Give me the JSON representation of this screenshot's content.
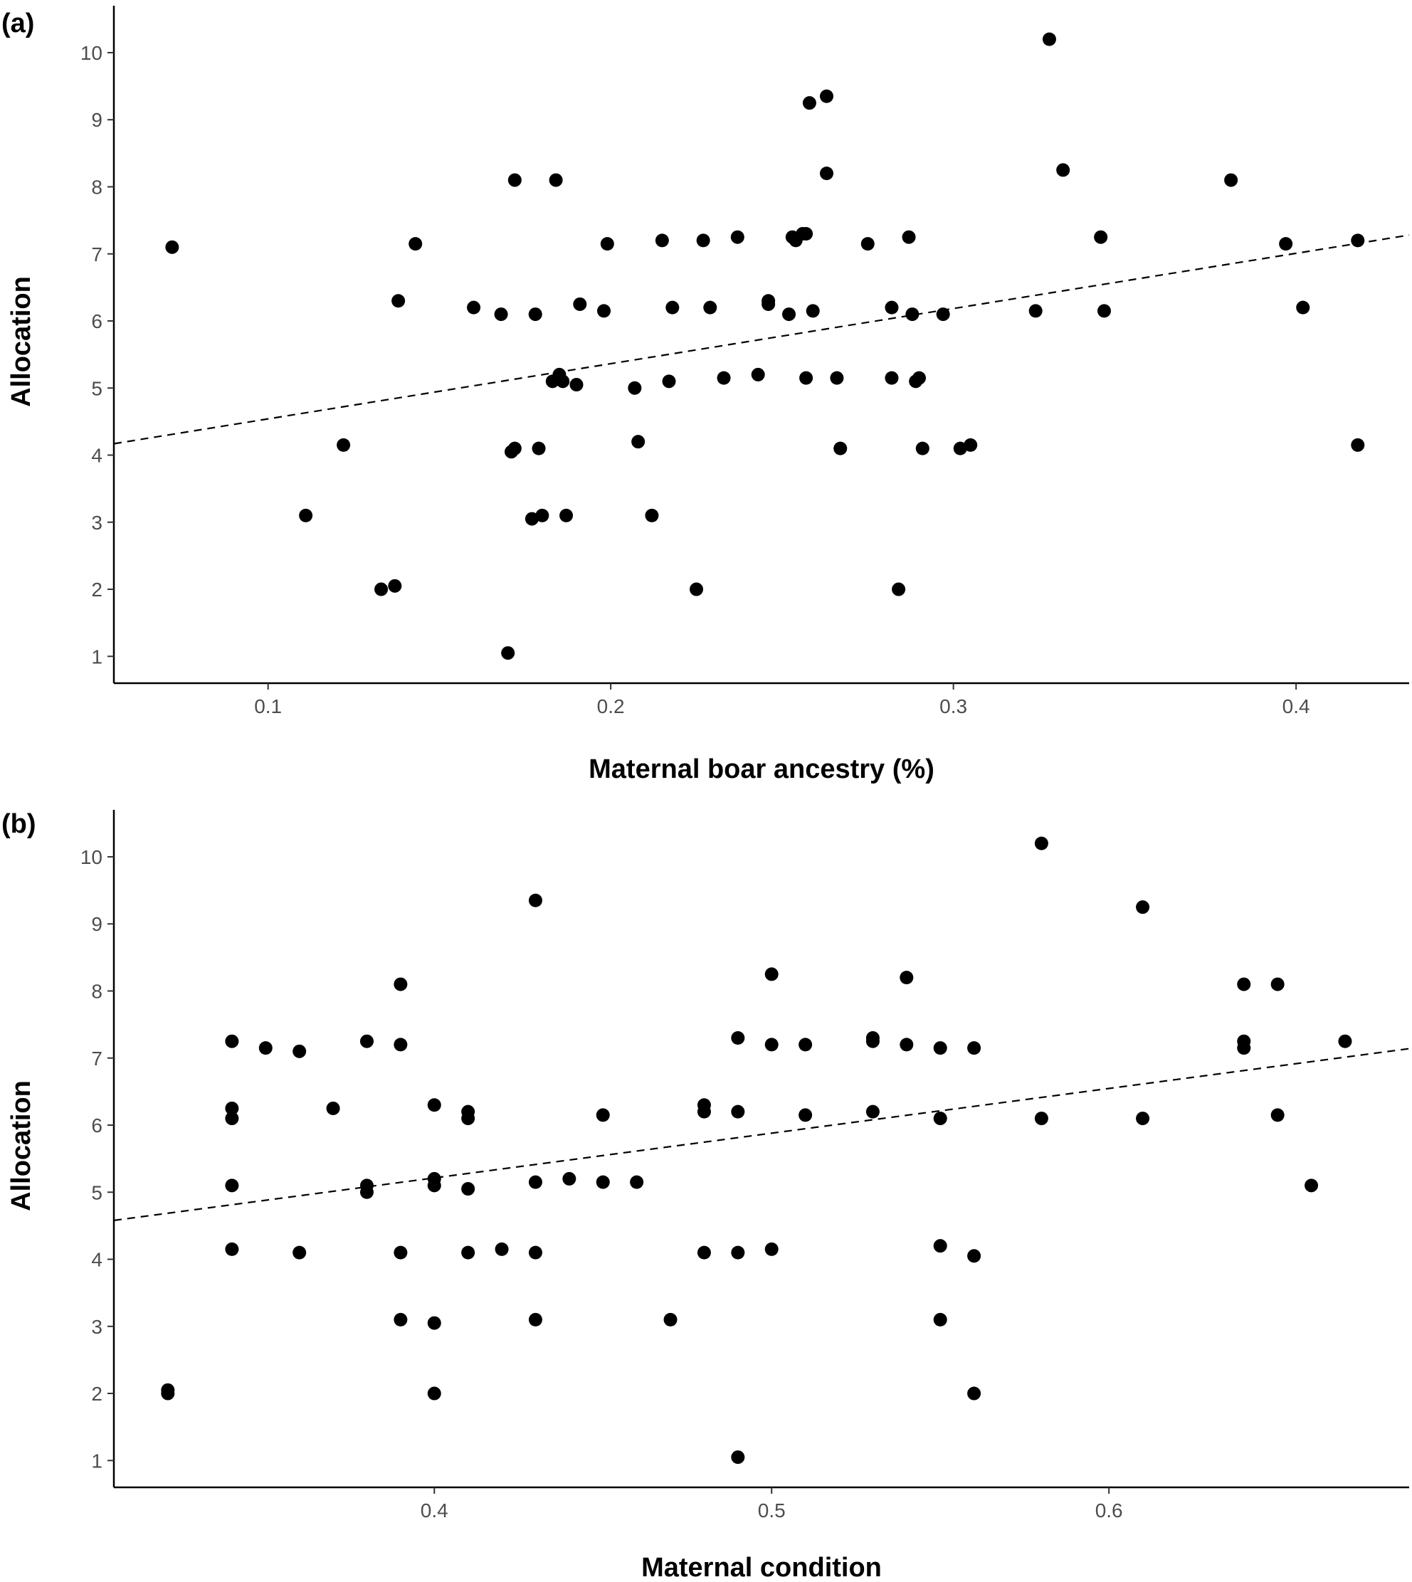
{
  "chart_data": [
    {
      "type": "scatter",
      "panel_label": "(a)",
      "xlabel": "Maternal boar ancestry (%)",
      "ylabel": "Allocation",
      "xlim": [
        0.055,
        0.433
      ],
      "ylim": [
        0.6,
        10.7
      ],
      "x_ticks": [
        0.1,
        0.2,
        0.3,
        0.4
      ],
      "x_tick_labels": [
        "0.1",
        "0.2",
        "0.3",
        "0.4"
      ],
      "y_ticks": [
        1,
        2,
        3,
        4,
        5,
        6,
        7,
        8,
        9,
        10
      ],
      "y_tick_labels": [
        "1",
        "2",
        "3",
        "4",
        "5",
        "6",
        "7",
        "8",
        "9",
        "10"
      ],
      "grid": false,
      "trend_line": {
        "style": "dashed",
        "x": [
          0.055,
          0.433
        ],
        "y": [
          4.17,
          7.28
        ]
      },
      "points": [
        [
          0.072,
          7.1
        ],
        [
          0.111,
          3.1
        ],
        [
          0.122,
          4.15
        ],
        [
          0.133,
          2.0
        ],
        [
          0.137,
          2.05
        ],
        [
          0.138,
          6.3
        ],
        [
          0.143,
          7.15
        ],
        [
          0.16,
          6.2
        ],
        [
          0.168,
          6.1
        ],
        [
          0.17,
          1.05
        ],
        [
          0.171,
          4.05
        ],
        [
          0.172,
          4.1
        ],
        [
          0.172,
          8.1
        ],
        [
          0.177,
          3.05
        ],
        [
          0.178,
          6.1
        ],
        [
          0.179,
          4.1
        ],
        [
          0.18,
          3.1
        ],
        [
          0.183,
          5.1
        ],
        [
          0.184,
          8.1
        ],
        [
          0.185,
          5.2
        ],
        [
          0.186,
          5.1
        ],
        [
          0.187,
          3.1
        ],
        [
          0.19,
          5.05
        ],
        [
          0.191,
          6.25
        ],
        [
          0.198,
          6.15
        ],
        [
          0.199,
          7.15
        ],
        [
          0.207,
          5.0
        ],
        [
          0.208,
          4.2
        ],
        [
          0.212,
          3.1
        ],
        [
          0.215,
          7.2
        ],
        [
          0.217,
          5.1
        ],
        [
          0.218,
          6.2
        ],
        [
          0.225,
          2.0
        ],
        [
          0.227,
          7.2
        ],
        [
          0.229,
          6.2
        ],
        [
          0.233,
          5.15
        ],
        [
          0.237,
          7.25
        ],
        [
          0.243,
          5.2
        ],
        [
          0.246,
          6.25
        ],
        [
          0.246,
          6.3
        ],
        [
          0.252,
          6.1
        ],
        [
          0.253,
          7.25
        ],
        [
          0.254,
          7.2
        ],
        [
          0.256,
          7.3
        ],
        [
          0.257,
          5.15
        ],
        [
          0.257,
          7.3
        ],
        [
          0.258,
          9.25
        ],
        [
          0.259,
          6.15
        ],
        [
          0.263,
          8.2
        ],
        [
          0.263,
          9.35
        ],
        [
          0.266,
          5.15
        ],
        [
          0.267,
          4.1
        ],
        [
          0.275,
          7.15
        ],
        [
          0.282,
          5.15
        ],
        [
          0.282,
          6.2
        ],
        [
          0.284,
          2.0
        ],
        [
          0.287,
          7.25
        ],
        [
          0.288,
          6.1
        ],
        [
          0.289,
          5.1
        ],
        [
          0.29,
          5.15
        ],
        [
          0.291,
          4.1
        ],
        [
          0.297,
          6.1
        ],
        [
          0.302,
          4.1
        ],
        [
          0.305,
          4.15
        ],
        [
          0.324,
          6.15
        ],
        [
          0.328,
          10.2
        ],
        [
          0.332,
          8.25
        ],
        [
          0.343,
          7.25
        ],
        [
          0.344,
          6.15
        ],
        [
          0.381,
          8.1
        ],
        [
          0.397,
          7.15
        ],
        [
          0.402,
          6.2
        ],
        [
          0.418,
          4.15
        ],
        [
          0.418,
          7.2
        ]
      ]
    },
    {
      "type": "scatter",
      "panel_label": "(b)",
      "xlabel": "Maternal condition",
      "ylabel": "Allocation",
      "xlim": [
        0.305,
        0.689
      ],
      "ylim": [
        0.6,
        10.7
      ],
      "x_ticks": [
        0.4,
        0.5,
        0.6
      ],
      "x_tick_labels": [
        "0.4",
        "0.5",
        "0.6"
      ],
      "y_ticks": [
        1,
        2,
        3,
        4,
        5,
        6,
        7,
        8,
        9,
        10
      ],
      "y_tick_labels": [
        "1",
        "2",
        "3",
        "4",
        "5",
        "6",
        "7",
        "8",
        "9",
        "10"
      ],
      "grid": false,
      "trend_line": {
        "style": "dashed",
        "x": [
          0.305,
          0.689
        ],
        "y": [
          4.58,
          7.14
        ]
      },
      "points": [
        [
          0.321,
          2.0
        ],
        [
          0.321,
          2.05
        ],
        [
          0.34,
          4.15
        ],
        [
          0.34,
          5.1
        ],
        [
          0.34,
          6.1
        ],
        [
          0.34,
          6.25
        ],
        [
          0.34,
          7.25
        ],
        [
          0.35,
          7.15
        ],
        [
          0.36,
          4.1
        ],
        [
          0.36,
          7.1
        ],
        [
          0.37,
          6.25
        ],
        [
          0.38,
          5.0
        ],
        [
          0.38,
          5.1
        ],
        [
          0.38,
          7.25
        ],
        [
          0.39,
          3.1
        ],
        [
          0.39,
          4.1
        ],
        [
          0.39,
          7.2
        ],
        [
          0.39,
          8.1
        ],
        [
          0.4,
          2.0
        ],
        [
          0.4,
          3.05
        ],
        [
          0.4,
          5.1
        ],
        [
          0.4,
          5.2
        ],
        [
          0.4,
          6.3
        ],
        [
          0.41,
          4.1
        ],
        [
          0.41,
          5.05
        ],
        [
          0.41,
          6.1
        ],
        [
          0.41,
          6.2
        ],
        [
          0.42,
          4.15
        ],
        [
          0.43,
          3.1
        ],
        [
          0.43,
          4.1
        ],
        [
          0.43,
          5.15
        ],
        [
          0.43,
          9.35
        ],
        [
          0.44,
          5.2
        ],
        [
          0.45,
          5.15
        ],
        [
          0.45,
          6.15
        ],
        [
          0.46,
          5.15
        ],
        [
          0.47,
          3.1
        ],
        [
          0.48,
          4.1
        ],
        [
          0.48,
          6.2
        ],
        [
          0.48,
          6.3
        ],
        [
          0.49,
          1.05
        ],
        [
          0.49,
          4.1
        ],
        [
          0.49,
          6.2
        ],
        [
          0.49,
          7.3
        ],
        [
          0.5,
          4.15
        ],
        [
          0.5,
          7.2
        ],
        [
          0.5,
          8.25
        ],
        [
          0.51,
          6.15
        ],
        [
          0.51,
          7.2
        ],
        [
          0.53,
          6.2
        ],
        [
          0.53,
          7.25
        ],
        [
          0.53,
          7.3
        ],
        [
          0.54,
          7.2
        ],
        [
          0.54,
          8.2
        ],
        [
          0.55,
          3.1
        ],
        [
          0.55,
          4.2
        ],
        [
          0.55,
          6.1
        ],
        [
          0.55,
          7.15
        ],
        [
          0.56,
          2.0
        ],
        [
          0.56,
          4.05
        ],
        [
          0.56,
          7.15
        ],
        [
          0.58,
          6.1
        ],
        [
          0.58,
          10.2
        ],
        [
          0.61,
          6.1
        ],
        [
          0.61,
          9.25
        ],
        [
          0.64,
          7.15
        ],
        [
          0.64,
          7.25
        ],
        [
          0.64,
          8.1
        ],
        [
          0.65,
          6.15
        ],
        [
          0.65,
          8.1
        ],
        [
          0.66,
          5.1
        ],
        [
          0.67,
          7.25
        ]
      ]
    }
  ]
}
